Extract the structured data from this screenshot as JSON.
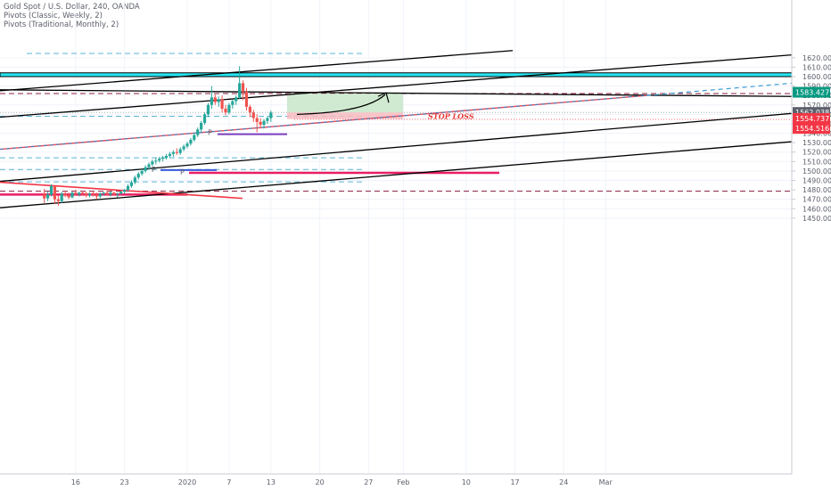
{
  "header": {
    "symbol_line": "Gold Spot / U.S. Dollar, 240, OANDA",
    "indicator_1": "Pivots (Classic, Weekly, 2)",
    "indicator_2": "Pivots (Traditional, Monthly, 2)"
  },
  "chart_data": {
    "type": "candlestick",
    "instrument": "Gold Spot / U.S. Dollar",
    "interval": "240",
    "source": "OANDA",
    "y_axis": {
      "range": [
        1446,
        1627
      ],
      "ticks": [
        "1450.000",
        "1460.000",
        "1470.000",
        "1480.000",
        "1490.000",
        "1500.000",
        "1510.000",
        "1520.000",
        "1530.000",
        "1540.000",
        "1550.000",
        "1560.000",
        "1570.000",
        "1580.000",
        "1590.000",
        "1600.000",
        "1610.000",
        "1620.000"
      ],
      "tick_values": [
        1450,
        1460,
        1470,
        1480,
        1490,
        1500,
        1510,
        1520,
        1530,
        1540,
        1550,
        1560,
        1570,
        1580,
        1590,
        1600,
        1610,
        1620
      ]
    },
    "x_axis": {
      "labels": [
        "16",
        "23",
        "2020",
        "7",
        "13",
        "20",
        "27",
        "Feb",
        "10",
        "17",
        "24",
        "Mar"
      ],
      "positions_day": [
        -16,
        -9,
        0,
        6,
        12,
        19,
        26,
        31,
        40,
        47,
        54,
        60
      ]
    },
    "candles": [
      {
        "d": -20.5,
        "o": 1476,
        "h": 1481,
        "l": 1466,
        "c": 1471
      },
      {
        "d": -20.0,
        "o": 1471,
        "h": 1478,
        "l": 1468,
        "c": 1475
      },
      {
        "d": -19.5,
        "o": 1475,
        "h": 1486,
        "l": 1473,
        "c": 1484
      },
      {
        "d": -19.0,
        "o": 1484,
        "h": 1485,
        "l": 1465,
        "c": 1470
      },
      {
        "d": -18.5,
        "o": 1470,
        "h": 1474,
        "l": 1463,
        "c": 1468
      },
      {
        "d": -18.0,
        "o": 1468,
        "h": 1478,
        "l": 1466,
        "c": 1476
      },
      {
        "d": -17.5,
        "o": 1476,
        "h": 1479,
        "l": 1472,
        "c": 1474
      },
      {
        "d": -17.0,
        "o": 1474,
        "h": 1477,
        "l": 1470,
        "c": 1472
      },
      {
        "d": -16.5,
        "o": 1472,
        "h": 1478,
        "l": 1471,
        "c": 1477
      },
      {
        "d": -16.0,
        "o": 1477,
        "h": 1480,
        "l": 1474,
        "c": 1475
      },
      {
        "d": -15.5,
        "o": 1475,
        "h": 1478,
        "l": 1473,
        "c": 1477
      },
      {
        "d": -15.0,
        "o": 1477,
        "h": 1479,
        "l": 1474,
        "c": 1476
      },
      {
        "d": -14.5,
        "o": 1476,
        "h": 1478,
        "l": 1472,
        "c": 1474
      },
      {
        "d": -14.0,
        "o": 1474,
        "h": 1477,
        "l": 1472,
        "c": 1476
      },
      {
        "d": -13.5,
        "o": 1476,
        "h": 1479,
        "l": 1473,
        "c": 1475
      },
      {
        "d": -13.0,
        "o": 1475,
        "h": 1477,
        "l": 1470,
        "c": 1473
      },
      {
        "d": -12.5,
        "o": 1473,
        "h": 1477,
        "l": 1471,
        "c": 1476
      },
      {
        "d": -12.0,
        "o": 1476,
        "h": 1478,
        "l": 1474,
        "c": 1477
      },
      {
        "d": -11.5,
        "o": 1477,
        "h": 1479,
        "l": 1474,
        "c": 1475
      },
      {
        "d": -11.0,
        "o": 1475,
        "h": 1478,
        "l": 1473,
        "c": 1477
      },
      {
        "d": -10.5,
        "o": 1477,
        "h": 1478,
        "l": 1474,
        "c": 1475
      },
      {
        "d": -10.0,
        "o": 1475,
        "h": 1477,
        "l": 1472,
        "c": 1476
      },
      {
        "d": -9.5,
        "o": 1476,
        "h": 1479,
        "l": 1475,
        "c": 1478
      },
      {
        "d": -9.0,
        "o": 1478,
        "h": 1481,
        "l": 1476,
        "c": 1480
      },
      {
        "d": -8.5,
        "o": 1480,
        "h": 1486,
        "l": 1478,
        "c": 1484
      },
      {
        "d": -8.0,
        "o": 1484,
        "h": 1490,
        "l": 1482,
        "c": 1488
      },
      {
        "d": -7.5,
        "o": 1488,
        "h": 1495,
        "l": 1486,
        "c": 1493
      },
      {
        "d": -7.0,
        "o": 1493,
        "h": 1499,
        "l": 1491,
        "c": 1497
      },
      {
        "d": -6.5,
        "o": 1497,
        "h": 1502,
        "l": 1495,
        "c": 1500
      },
      {
        "d": -6.0,
        "o": 1500,
        "h": 1506,
        "l": 1498,
        "c": 1504
      },
      {
        "d": -5.5,
        "o": 1504,
        "h": 1509,
        "l": 1501,
        "c": 1507
      },
      {
        "d": -5.0,
        "o": 1507,
        "h": 1512,
        "l": 1505,
        "c": 1510
      },
      {
        "d": -4.5,
        "o": 1510,
        "h": 1514,
        "l": 1507,
        "c": 1511
      },
      {
        "d": -4.0,
        "o": 1511,
        "h": 1515,
        "l": 1509,
        "c": 1513
      },
      {
        "d": -3.5,
        "o": 1513,
        "h": 1516,
        "l": 1510,
        "c": 1514
      },
      {
        "d": -3.0,
        "o": 1514,
        "h": 1518,
        "l": 1512,
        "c": 1516
      },
      {
        "d": -2.5,
        "o": 1516,
        "h": 1520,
        "l": 1514,
        "c": 1518
      },
      {
        "d": -2.0,
        "o": 1518,
        "h": 1522,
        "l": 1515,
        "c": 1520
      },
      {
        "d": -1.5,
        "o": 1520,
        "h": 1524,
        "l": 1517,
        "c": 1519
      },
      {
        "d": -1.0,
        "o": 1519,
        "h": 1525,
        "l": 1517,
        "c": 1523
      },
      {
        "d": -0.5,
        "o": 1523,
        "h": 1528,
        "l": 1521,
        "c": 1526
      },
      {
        "d": 0.0,
        "o": 1526,
        "h": 1531,
        "l": 1524,
        "c": 1529
      },
      {
        "d": 0.5,
        "o": 1529,
        "h": 1535,
        "l": 1527,
        "c": 1533
      },
      {
        "d": 1.0,
        "o": 1533,
        "h": 1540,
        "l": 1531,
        "c": 1538
      },
      {
        "d": 1.5,
        "o": 1538,
        "h": 1546,
        "l": 1536,
        "c": 1544
      },
      {
        "d": 2.0,
        "o": 1544,
        "h": 1553,
        "l": 1541,
        "c": 1551
      },
      {
        "d": 2.5,
        "o": 1551,
        "h": 1562,
        "l": 1549,
        "c": 1560
      },
      {
        "d": 3.0,
        "o": 1560,
        "h": 1572,
        "l": 1557,
        "c": 1570
      },
      {
        "d": 3.5,
        "o": 1570,
        "h": 1590,
        "l": 1566,
        "c": 1578
      },
      {
        "d": 4.0,
        "o": 1578,
        "h": 1581,
        "l": 1570,
        "c": 1573
      },
      {
        "d": 4.5,
        "o": 1573,
        "h": 1579,
        "l": 1568,
        "c": 1576
      },
      {
        "d": 5.0,
        "o": 1576,
        "h": 1580,
        "l": 1562,
        "c": 1566
      },
      {
        "d": 5.5,
        "o": 1566,
        "h": 1570,
        "l": 1559,
        "c": 1562
      },
      {
        "d": 6.0,
        "o": 1562,
        "h": 1572,
        "l": 1560,
        "c": 1570
      },
      {
        "d": 6.5,
        "o": 1570,
        "h": 1576,
        "l": 1566,
        "c": 1574
      },
      {
        "d": 7.0,
        "o": 1574,
        "h": 1580,
        "l": 1570,
        "c": 1578
      },
      {
        "d": 7.5,
        "o": 1578,
        "h": 1611,
        "l": 1576,
        "c": 1593
      },
      {
        "d": 8.0,
        "o": 1593,
        "h": 1596,
        "l": 1575,
        "c": 1584
      },
      {
        "d": 8.5,
        "o": 1584,
        "h": 1588,
        "l": 1564,
        "c": 1568
      },
      {
        "d": 9.0,
        "o": 1568,
        "h": 1570,
        "l": 1557,
        "c": 1562
      },
      {
        "d": 9.5,
        "o": 1562,
        "h": 1565,
        "l": 1552,
        "c": 1556
      },
      {
        "d": 10.0,
        "o": 1556,
        "h": 1560,
        "l": 1541,
        "c": 1552
      },
      {
        "d": 10.5,
        "o": 1552,
        "h": 1556,
        "l": 1545,
        "c": 1549
      },
      {
        "d": 11.0,
        "o": 1549,
        "h": 1555,
        "l": 1545,
        "c": 1553
      },
      {
        "d": 11.5,
        "o": 1553,
        "h": 1558,
        "l": 1550,
        "c": 1556
      },
      {
        "d": 12.0,
        "o": 1556,
        "h": 1564,
        "l": 1552,
        "c": 1562
      }
    ],
    "price_tags": [
      {
        "value": 1583.427,
        "label": "1583.427",
        "color": "#089981"
      },
      {
        "value": 1562.038,
        "label": "1562.038",
        "color": "#5d606b"
      },
      {
        "value": 1554.737,
        "label": "1554.737",
        "color": "#f23645"
      },
      {
        "value": 1554.516,
        "label": "1554.516",
        "color": "#f23645"
      }
    ],
    "annotations": {
      "stop_loss_label": "STOP LOSS",
      "pivot_label": "P",
      "resistance_zone": [
        1600,
        1604
      ],
      "target_zone": [
        1562,
        1582
      ],
      "stop_zone": [
        1555,
        1562
      ],
      "pivot_levels": [
        1539,
        1501,
        1498
      ]
    }
  }
}
